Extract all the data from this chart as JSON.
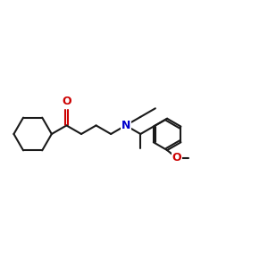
{
  "bg_color": "#ffffff",
  "bond_color": "#1a1a1a",
  "oxygen_color": "#cc0000",
  "nitrogen_color": "#0000cc",
  "line_width": 1.5,
  "figsize": [
    3.0,
    3.0
  ],
  "dpi": 100,
  "xlim": [
    0.0,
    1.0
  ],
  "ylim": [
    0.15,
    0.85
  ]
}
